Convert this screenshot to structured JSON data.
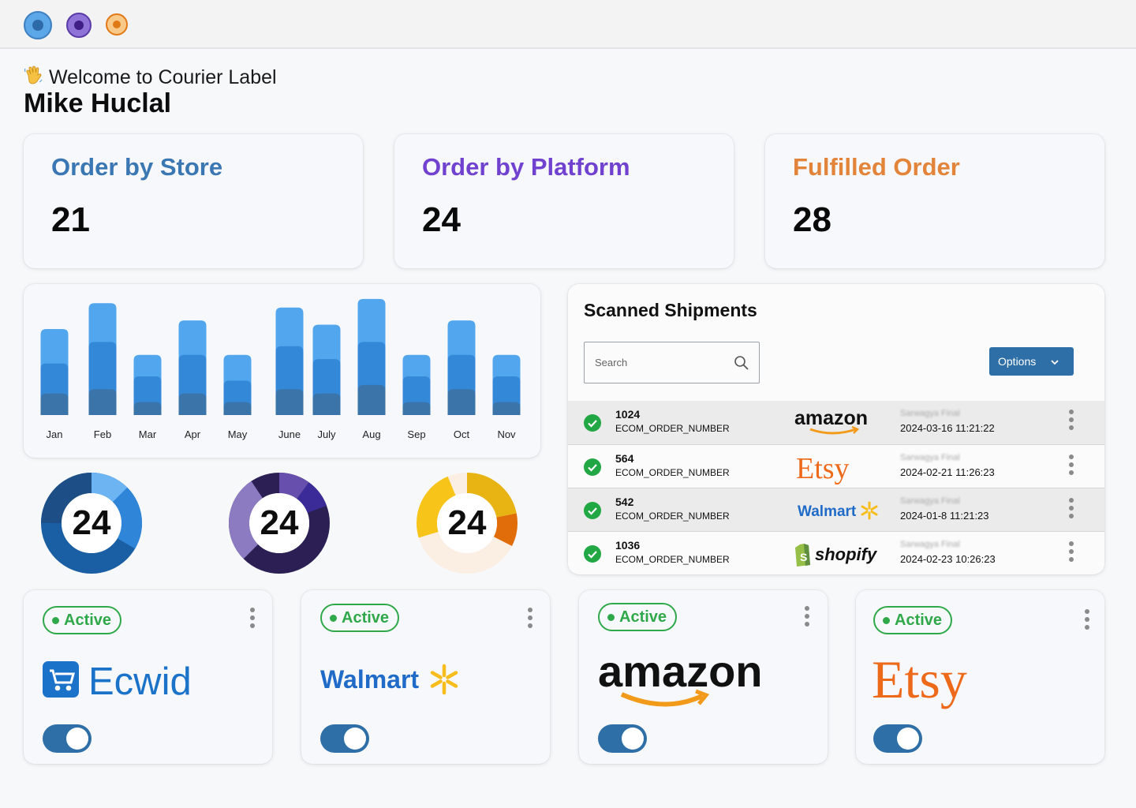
{
  "window": {
    "dots": [
      {
        "name": "window-dot-blue",
        "outer": "#5ba7e8",
        "inner": "#2f7cc4"
      },
      {
        "name": "window-dot-purple",
        "outer": "#8f73d6",
        "inner": "#4f2e9a"
      },
      {
        "name": "window-dot-orange",
        "outer": "#f7b04e",
        "inner": "#e06f0f"
      }
    ]
  },
  "header": {
    "welcome_icon": "waving-hand-icon",
    "welcome": "Welcome to Courier Label",
    "user": "Mike Huclal"
  },
  "stats": [
    {
      "title": "Order by Store",
      "value": "21",
      "color": "#3a77b3"
    },
    {
      "title": "Order by Platform",
      "value": "24",
      "color": "#7142cf"
    },
    {
      "title": "Fulfilled Order",
      "value": "28",
      "color": "#e2843a"
    }
  ],
  "chart_data": {
    "type": "bar",
    "categories": [
      "Jan",
      "Feb",
      "Mar",
      "Apr",
      "May",
      "June",
      "July",
      "Aug",
      "Sep",
      "Oct",
      "Nov"
    ],
    "series": [
      {
        "values": [
          5,
          6,
          3,
          5,
          3,
          6,
          5,
          7,
          3,
          6,
          3
        ]
      },
      {
        "values": [
          12,
          17,
          9,
          14,
          8,
          16,
          13,
          17,
          9,
          14,
          9
        ]
      },
      {
        "values": [
          20,
          26,
          14,
          22,
          14,
          25,
          21,
          27,
          14,
          22,
          14
        ]
      }
    ],
    "colors": [
      "#3a74a8",
      "#3488d8",
      "#52a6ee"
    ],
    "title": "",
    "xlabel": "",
    "ylabel": ""
  },
  "donuts": [
    {
      "value": "24",
      "theme": "blue"
    },
    {
      "value": "24",
      "theme": "purple"
    },
    {
      "value": "24",
      "theme": "orange"
    }
  ],
  "shipments": {
    "title": "Scanned Shipments",
    "search_placeholder": "Search",
    "options_label": "Options",
    "rows": [
      {
        "number": "1024",
        "key": "ECOM_ORDER_NUMBER",
        "platform": "amazon",
        "user": "Sarwagya Final",
        "date": "2024-03-16 11:21:22"
      },
      {
        "number": "564",
        "key": "ECOM_ORDER_NUMBER",
        "platform": "Etsy",
        "user": "Sarwagya Final",
        "date": "2024-02-21 11:26:23"
      },
      {
        "number": "542",
        "key": "ECOM_ORDER_NUMBER",
        "platform": "Walmart",
        "user": "Sarwagya Final",
        "date": "2024-01-8 11:21:23"
      },
      {
        "number": "1036",
        "key": "ECOM_ORDER_NUMBER",
        "platform": "shopify",
        "user": "Sarwagya Final",
        "date": "2024-02-23 10:26:23"
      }
    ]
  },
  "platforms": [
    {
      "name": "Ecwid",
      "status": "Active",
      "enabled": true
    },
    {
      "name": "Walmart",
      "status": "Active",
      "enabled": true
    },
    {
      "name": "amazon",
      "status": "Active",
      "enabled": true
    },
    {
      "name": "Etsy",
      "status": "Active",
      "enabled": true
    }
  ]
}
